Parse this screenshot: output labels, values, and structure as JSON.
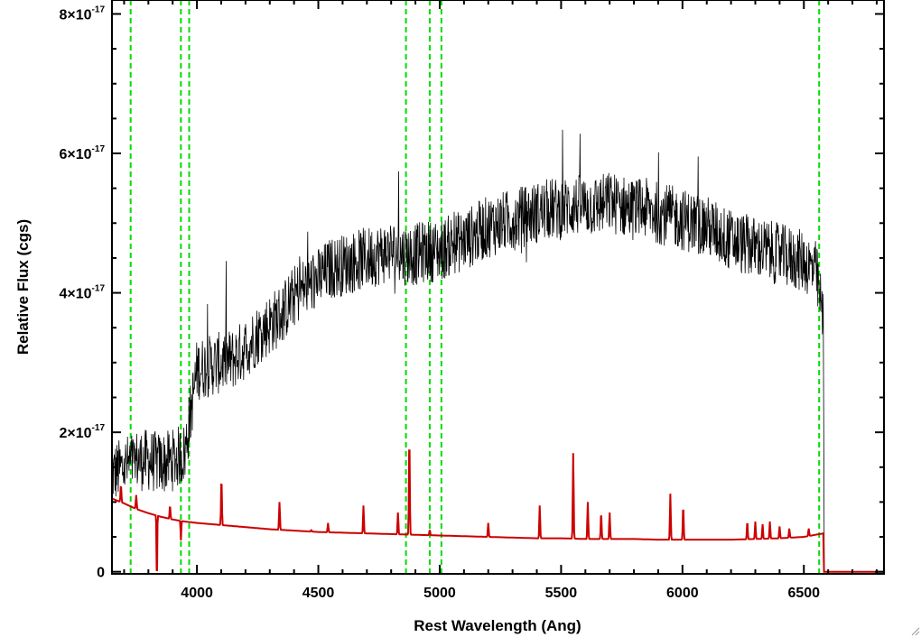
{
  "chart_data": {
    "type": "line",
    "title": "",
    "xlabel": "Rest Wavelength (Ang)",
    "ylabel": "Relative Flux (cgs)",
    "xlim": [
      3650,
      6830
    ],
    "ylim": [
      -3e-19,
      8.2e-17
    ],
    "grid": false,
    "x_ticks": [
      {
        "value": 4000,
        "label": "4000"
      },
      {
        "value": 4500,
        "label": "4500"
      },
      {
        "value": 5000,
        "label": "5000"
      },
      {
        "value": 5500,
        "label": "5500"
      },
      {
        "value": 6000,
        "label": "6000"
      },
      {
        "value": 6500,
        "label": "6500"
      }
    ],
    "y_ticks": [
      {
        "value": 0,
        "mantissa": "0",
        "exponent": ""
      },
      {
        "value": 2e-17,
        "mantissa": "2×10",
        "exponent": "-17"
      },
      {
        "value": 4e-17,
        "mantissa": "4×10",
        "exponent": "-17"
      },
      {
        "value": 6e-17,
        "mantissa": "6×10",
        "exponent": "-17"
      },
      {
        "value": 8e-17,
        "mantissa": "8×10",
        "exponent": "-17"
      }
    ],
    "vlines": [
      3727,
      3934,
      3968,
      4861,
      4959,
      5007,
      6563
    ],
    "series": [
      {
        "color": "#000000",
        "style": "noisy-observed",
        "x": [
          3650,
          3700,
          3750,
          3800,
          3850,
          3900,
          3950,
          4000,
          4050,
          4100,
          4150,
          4200,
          4250,
          4300,
          4350,
          4400,
          4450,
          4500,
          4550,
          4600,
          4650,
          4700,
          4750,
          4800,
          4850,
          4900,
          4950,
          5000,
          5050,
          5100,
          5150,
          5200,
          5250,
          5300,
          5350,
          5400,
          5450,
          5500,
          5550,
          5600,
          5650,
          5700,
          5750,
          5800,
          5850,
          5900,
          5950,
          6000,
          6050,
          6100,
          6150,
          6200,
          6250,
          6300,
          6350,
          6400,
          6450,
          6500,
          6550,
          6580
        ],
        "y": [
          1.4e-17,
          1.5e-17,
          1.6e-17,
          1.6e-17,
          1.55e-17,
          1.6e-17,
          1.7e-17,
          2.9e-17,
          2.95e-17,
          3e-17,
          3.05e-17,
          3.2e-17,
          3.4e-17,
          3.55e-17,
          3.7e-17,
          3.95e-17,
          4.1e-17,
          4.2e-17,
          4.35e-17,
          4.4e-17,
          4.45e-17,
          4.5e-17,
          4.55e-17,
          4.6e-17,
          4.55e-17,
          4.55e-17,
          4.6e-17,
          4.6e-17,
          4.7e-17,
          4.75e-17,
          4.85e-17,
          4.95e-17,
          5e-17,
          5.05e-17,
          5.1e-17,
          5.15e-17,
          5.2e-17,
          5.2e-17,
          5.25e-17,
          5.25e-17,
          5.25e-17,
          5.3e-17,
          5.25e-17,
          5.2e-17,
          5.2e-17,
          5.15e-17,
          5.1e-17,
          5.05e-17,
          5e-17,
          4.95e-17,
          4.85e-17,
          4.75e-17,
          4.7e-17,
          4.65e-17,
          4.6e-17,
          4.55e-17,
          4.5e-17,
          4.45e-17,
          4.3e-17,
          3.6e-17
        ]
      },
      {
        "color": "#cc0000",
        "style": "model-continuum",
        "x": [
          3650,
          3700,
          3750,
          3800,
          3850,
          3900,
          3950,
          4000,
          4100,
          4200,
          4300,
          4400,
          4500,
          4600,
          4700,
          4800,
          4900,
          5000,
          5100,
          5200,
          5300,
          5400,
          5500,
          5600,
          5700,
          5800,
          5900,
          6000,
          6100,
          6200,
          6300,
          6400,
          6500,
          6580
        ],
        "y": [
          1.05e-17,
          9.8e-18,
          9e-18,
          8.4e-18,
          7.9e-18,
          7.5e-18,
          7.2e-18,
          7e-18,
          6.7e-18,
          6.4e-18,
          6.1e-18,
          5.9e-18,
          5.7e-18,
          5.6e-18,
          5.5e-18,
          5.4e-18,
          5.3e-18,
          5.2e-18,
          5.1e-18,
          5e-18,
          4.9e-18,
          4.8e-18,
          4.8e-18,
          4.7e-18,
          4.7e-18,
          4.7e-18,
          4.6e-18,
          4.6e-18,
          4.6e-18,
          4.6e-18,
          4.7e-18,
          4.8e-18,
          5e-18,
          5.5e-18
        ]
      }
    ],
    "emission_lines": [
      {
        "x": 3687,
        "peak": 1.25e-17
      },
      {
        "x": 3750,
        "peak": 1.1e-17
      },
      {
        "x": 3889,
        "peak": 9.5e-18
      },
      {
        "x": 4101,
        "peak": 1.35e-17
      },
      {
        "x": 4340,
        "peak": 1e-17
      },
      {
        "x": 4471,
        "peak": 6e-18
      },
      {
        "x": 4540,
        "peak": 7e-18
      },
      {
        "x": 4686,
        "peak": 9.5e-18
      },
      {
        "x": 4828,
        "peak": 8.5e-18
      },
      {
        "x": 4875,
        "peak": 1.95e-17
      },
      {
        "x": 4959,
        "peak": 6e-18
      },
      {
        "x": 5200,
        "peak": 7e-18
      },
      {
        "x": 5412,
        "peak": 9.5e-18
      },
      {
        "x": 5550,
        "peak": 1.7e-17
      },
      {
        "x": 5610,
        "peak": 1e-17
      },
      {
        "x": 5665,
        "peak": 8.5e-18
      },
      {
        "x": 5700,
        "peak": 8.5e-18
      },
      {
        "x": 5950,
        "peak": 1.12e-17
      },
      {
        "x": 6003,
        "peak": 9.5e-18
      },
      {
        "x": 6267,
        "peak": 7.2e-18
      },
      {
        "x": 6300,
        "peak": 7.2e-18
      },
      {
        "x": 6330,
        "peak": 6.8e-18
      },
      {
        "x": 6360,
        "peak": 7.2e-18
      },
      {
        "x": 6400,
        "peak": 6.5e-18
      },
      {
        "x": 6440,
        "peak": 6.2e-18
      },
      {
        "x": 6520,
        "peak": 6.2e-18
      }
    ],
    "absorption_lines": [
      {
        "x": 3835,
        "trough": -2e-18
      },
      {
        "x": 3934,
        "trough": 4.5e-18
      }
    ],
    "colors": {
      "vline": "#00dd00",
      "axis": "#000000"
    }
  }
}
